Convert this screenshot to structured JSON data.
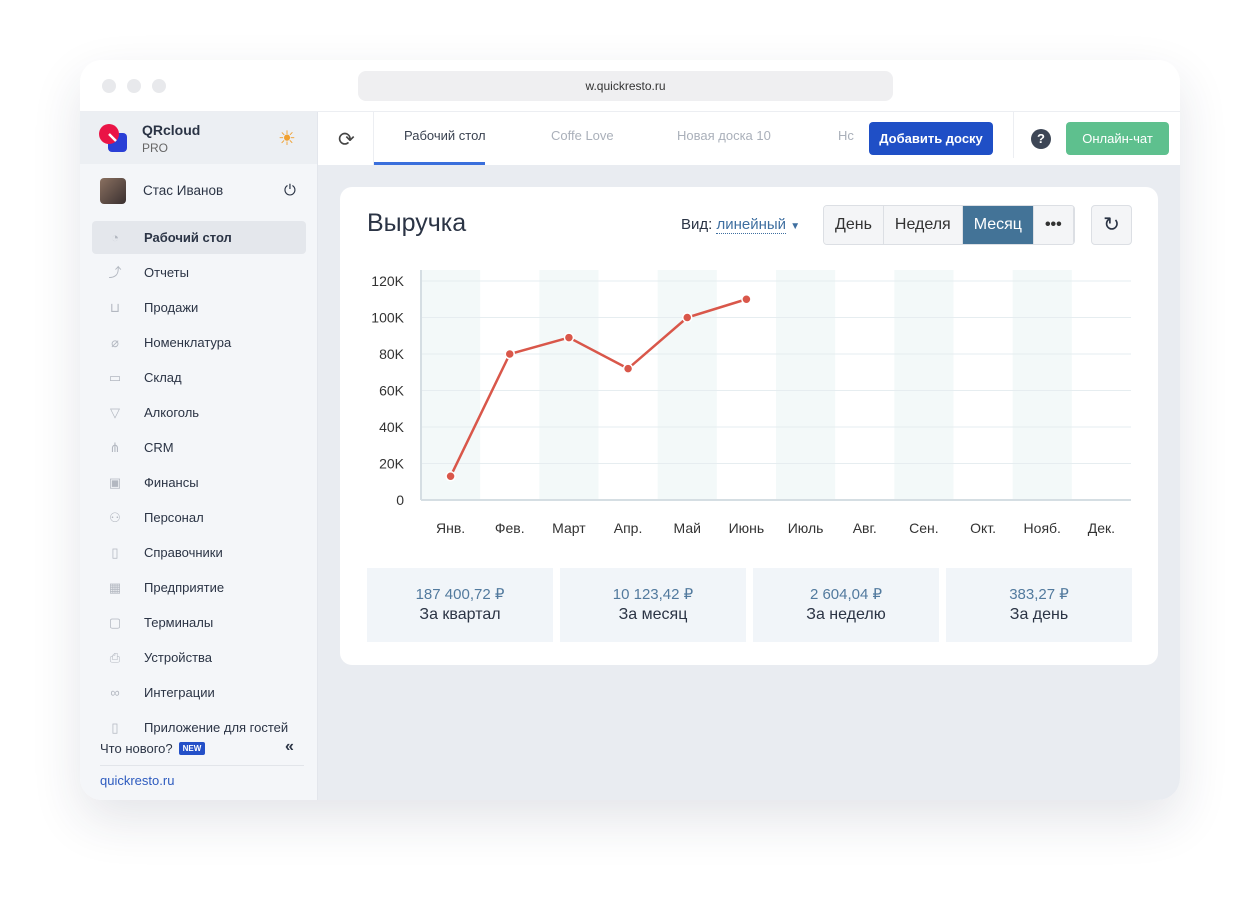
{
  "browser": {
    "url": "w.quickresto.ru"
  },
  "sidebar": {
    "brand": {
      "name": "QRcloud",
      "plan": "PRO"
    },
    "user": {
      "name": "Стас Иванов"
    },
    "items": [
      {
        "label": "Рабочий стол",
        "icon": "dashboard-icon",
        "glyph": "◔",
        "active": true
      },
      {
        "label": "Отчеты",
        "icon": "chart-icon",
        "glyph": "⤴"
      },
      {
        "label": "Продажи",
        "icon": "basket-icon",
        "glyph": "⊔"
      },
      {
        "label": "Номенклатура",
        "icon": "tag-icon",
        "glyph": "⌀"
      },
      {
        "label": "Склад",
        "icon": "box-icon",
        "glyph": "▭"
      },
      {
        "label": "Алкоголь",
        "icon": "glass-icon",
        "glyph": "▽"
      },
      {
        "label": "CRM",
        "icon": "hierarchy-icon",
        "glyph": "⋔"
      },
      {
        "label": "Финансы",
        "icon": "wallet-icon",
        "glyph": "▣"
      },
      {
        "label": "Персонал",
        "icon": "people-icon",
        "glyph": "⚇"
      },
      {
        "label": "Справочники",
        "icon": "book-icon",
        "glyph": "▯"
      },
      {
        "label": "Предприятие",
        "icon": "building-icon",
        "glyph": "▦"
      },
      {
        "label": "Терминалы",
        "icon": "qr-icon",
        "glyph": "▢"
      },
      {
        "label": "Устройства",
        "icon": "printer-icon",
        "glyph": "⎙"
      },
      {
        "label": "Интеграции",
        "icon": "infinity-icon",
        "glyph": "∞"
      },
      {
        "label": "Приложение для гостей",
        "icon": "phone-icon",
        "glyph": "▯"
      }
    ],
    "whats_new": "Что нового?",
    "new_badge": "NEW",
    "site": "quickresto.ru"
  },
  "topbar": {
    "tabs": [
      "Рабочий стол",
      "Coffe Love",
      "Новая доска 10",
      "Нс"
    ],
    "add_board": "Добавить доску",
    "help": "?",
    "chat": "Онлайн-чат"
  },
  "card": {
    "title": "Выручка",
    "view_label": "Вид:",
    "view_value": "линейный",
    "periods": [
      "День",
      "Неделя",
      "Месяц",
      "•••"
    ],
    "active_period": "Месяц",
    "stats": [
      {
        "value": "187 400,72 ₽",
        "label": "За квартал"
      },
      {
        "value": "10 123,42 ₽",
        "label": "За месяц"
      },
      {
        "value": "2 604,04 ₽",
        "label": "За неделю"
      },
      {
        "value": "383,27 ₽",
        "label": "За день"
      }
    ]
  },
  "chart_data": {
    "type": "line",
    "categories": [
      "Янв.",
      "Фев.",
      "Март",
      "Апр.",
      "Май",
      "Июнь",
      "Июль",
      "Авг.",
      "Сен.",
      "Окт.",
      "Нояб.",
      "Дек."
    ],
    "values": [
      13000,
      80000,
      89000,
      72000,
      100000,
      110000,
      null,
      null,
      null,
      null,
      null,
      null
    ],
    "yticks": [
      "0",
      "20K",
      "40K",
      "60K",
      "80K",
      "100K",
      "120K"
    ],
    "ylim": [
      0,
      120000
    ],
    "grid": true,
    "line_color": "#d9574a",
    "band_color": "#f3f9f9"
  }
}
